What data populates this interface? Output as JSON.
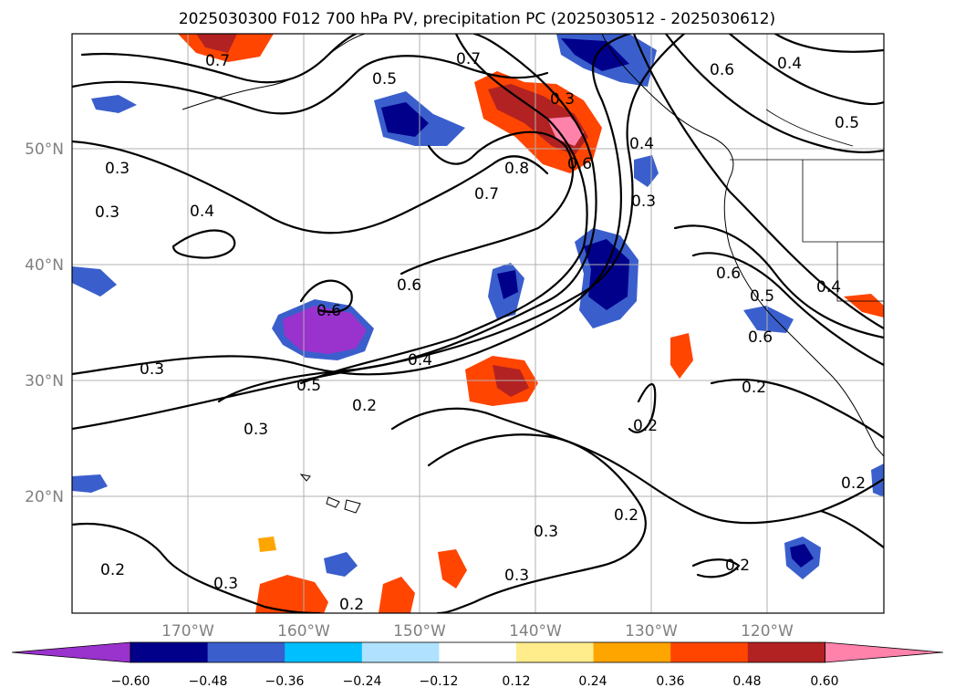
{
  "title": "2025030300 F012 700 hPa PV, precipitation PC (2025030512 - 2025030612)",
  "map": {
    "lon_labels": [
      "170°W",
      "160°W",
      "150°W",
      "140°W",
      "130°W",
      "120°W"
    ],
    "lat_labels": [
      "50°N",
      "40°N",
      "30°N",
      "20°N"
    ],
    "contour_labels": [
      "0.7",
      "0.5",
      "0.3",
      "0.3",
      "0.4",
      "0.7",
      "0.8",
      "0.7",
      "0.3",
      "0.6",
      "0.3",
      "0.4",
      "0.6",
      "0.4",
      "0.6",
      "0.5",
      "0.6",
      "0.2",
      "0.6",
      "0.4",
      "0.3",
      "0.5",
      "0.2",
      "0.3",
      "0.2",
      "0.3",
      "0.2",
      "0.2",
      "0.2",
      "0.3",
      "0.3",
      "0.2",
      "0.2",
      "0.6",
      "0.4",
      "0.5"
    ],
    "grid": true
  },
  "colorbar": {
    "ticks": [
      "−0.60",
      "−0.48",
      "−0.36",
      "−0.24",
      "−0.12",
      "0.12",
      "0.24",
      "0.36",
      "0.48",
      "0.60"
    ],
    "colors": [
      "#9a32cd",
      "#00008b",
      "#3a5fcd",
      "#00bfff",
      "#b0e2ff",
      "#ffffff",
      "#ffec8b",
      "#ffa500",
      "#ff4500",
      "#b22222",
      "#ff82ab"
    ],
    "extend": "both"
  }
}
